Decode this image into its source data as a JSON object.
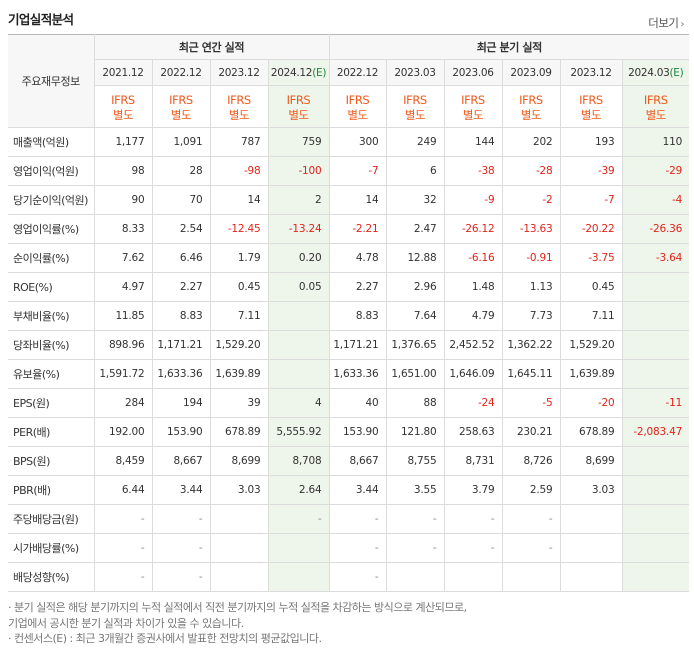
{
  "section_title": "기업실적분석",
  "more_label": "더보기",
  "more_icon": "chevron-right-icon",
  "row_header_label": "주요재무정보",
  "groups": {
    "annual": "최근 연간 실적",
    "quarterly": "최근 분기 실적"
  },
  "periods": [
    {
      "label": "2021.12",
      "est": ""
    },
    {
      "label": "2022.12",
      "est": ""
    },
    {
      "label": "2023.12",
      "est": ""
    },
    {
      "label": "2024.12",
      "est": "(E)"
    },
    {
      "label": "2022.12",
      "est": ""
    },
    {
      "label": "2023.03",
      "est": ""
    },
    {
      "label": "2023.06",
      "est": ""
    },
    {
      "label": "2023.09",
      "est": ""
    },
    {
      "label": "2023.12",
      "est": ""
    },
    {
      "label": "2024.03",
      "est": "(E)"
    }
  ],
  "ifrs": {
    "line1": "IFRS",
    "line2": "별도"
  },
  "rows": [
    {
      "label": "매출액(억원)",
      "values": [
        "1,177",
        "1,091",
        "787",
        "759",
        "300",
        "249",
        "144",
        "202",
        "193",
        "110"
      ]
    },
    {
      "label": "영업이익(억원)",
      "values": [
        "98",
        "28",
        "-98",
        "-100",
        "-7",
        "6",
        "-38",
        "-28",
        "-39",
        "-29"
      ]
    },
    {
      "label": "당기순이익(억원)",
      "values": [
        "90",
        "70",
        "14",
        "2",
        "14",
        "32",
        "-9",
        "-2",
        "-7",
        "-4"
      ]
    },
    {
      "label": "영업이익률(%)",
      "values": [
        "8.33",
        "2.54",
        "-12.45",
        "-13.24",
        "-2.21",
        "2.47",
        "-26.12",
        "-13.63",
        "-20.22",
        "-26.36"
      ]
    },
    {
      "label": "순이익률(%)",
      "values": [
        "7.62",
        "6.46",
        "1.79",
        "0.20",
        "4.78",
        "12.88",
        "-6.16",
        "-0.91",
        "-3.75",
        "-3.64"
      ]
    },
    {
      "label": "ROE(%)",
      "values": [
        "4.97",
        "2.27",
        "0.45",
        "0.05",
        "2.27",
        "2.96",
        "1.48",
        "1.13",
        "0.45",
        ""
      ]
    },
    {
      "label": "부채비율(%)",
      "values": [
        "11.85",
        "8.83",
        "7.11",
        "",
        "8.83",
        "7.64",
        "4.79",
        "7.73",
        "7.11",
        ""
      ]
    },
    {
      "label": "당좌비율(%)",
      "values": [
        "898.96",
        "1,171.21",
        "1,529.20",
        "",
        "1,171.21",
        "1,376.65",
        "2,452.52",
        "1,362.22",
        "1,529.20",
        ""
      ]
    },
    {
      "label": "유보율(%)",
      "values": [
        "1,591.72",
        "1,633.36",
        "1,639.89",
        "",
        "1,633.36",
        "1,651.00",
        "1,646.09",
        "1,645.11",
        "1,639.89",
        ""
      ]
    },
    {
      "label": "EPS(원)",
      "values": [
        "284",
        "194",
        "39",
        "4",
        "40",
        "88",
        "-24",
        "-5",
        "-20",
        "-11"
      ]
    },
    {
      "label": "PER(배)",
      "values": [
        "192.00",
        "153.90",
        "678.89",
        "5,555.92",
        "153.90",
        "121.80",
        "258.63",
        "230.21",
        "678.89",
        "-2,083.47"
      ]
    },
    {
      "label": "BPS(원)",
      "values": [
        "8,459",
        "8,667",
        "8,699",
        "8,708",
        "8,667",
        "8,755",
        "8,731",
        "8,726",
        "8,699",
        ""
      ]
    },
    {
      "label": "PBR(배)",
      "values": [
        "6.44",
        "3.44",
        "3.03",
        "2.64",
        "3.44",
        "3.55",
        "3.79",
        "2.59",
        "3.03",
        ""
      ]
    },
    {
      "label": "주당배당금(원)",
      "values": [
        "-",
        "-",
        "",
        "-",
        "-",
        "-",
        "-",
        "-",
        "",
        ""
      ]
    },
    {
      "label": "시가배당률(%)",
      "values": [
        "-",
        "-",
        "",
        "",
        "-",
        "-",
        "-",
        "-",
        "",
        ""
      ]
    },
    {
      "label": "배당성향(%)",
      "values": [
        "-",
        "-",
        "",
        "",
        "-",
        "",
        "",
        "",
        "",
        ""
      ]
    }
  ],
  "notes": [
    "· 분기 실적은 해당 분기까지의 누적 실적에서 직전 분기까지의 누적 실적을 차감하는 방식으로 계산되므로,",
    "  기업에서 공시한 분기 실적과 차이가 있을 수 있습니다.",
    "· 컨센서스(E) : 최근 3개월간 증권사에서 발표한 전망치의 평균값입니다."
  ],
  "colors": {
    "negative": "#e2231a",
    "ifrs": "#ef5a1c",
    "estimate_bg": "#eef5ea",
    "estimate_mark": "#1a8a3a"
  }
}
